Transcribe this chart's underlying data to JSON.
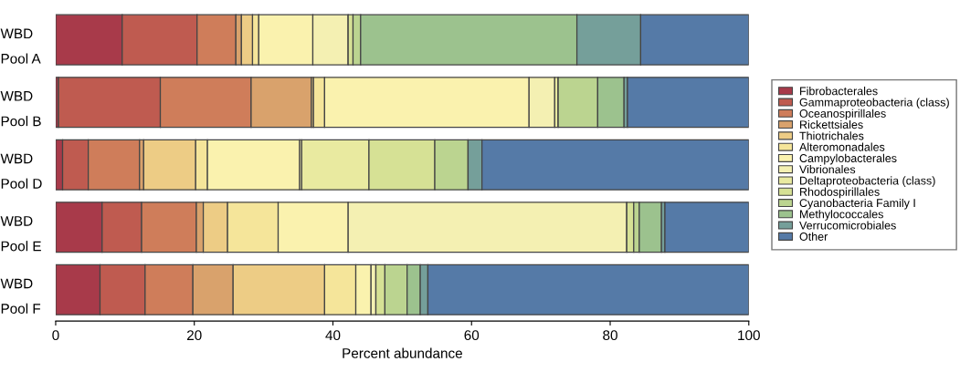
{
  "chart_data": {
    "type": "bar",
    "orientation": "horizontal",
    "stacked": true,
    "xlabel": "Percent abundance",
    "categories": [
      "WBD\nPool A",
      "WBD\nPool B",
      "WBD\nPool D",
      "WBD\nPool E",
      "WBD\nPool F"
    ],
    "xlim": [
      0,
      100
    ],
    "xticks": [
      0,
      20,
      40,
      60,
      80,
      100
    ],
    "grid": false,
    "legend": "right",
    "series": [
      {
        "name": "Fibrobacterales",
        "color": "#a83a4a",
        "values": [
          9.6,
          0.4,
          1.0,
          6.7,
          6.4
        ]
      },
      {
        "name": "Gammaproteobacteria (class)",
        "color": "#bf5b50",
        "values": [
          10.8,
          14.7,
          3.7,
          5.7,
          6.5
        ]
      },
      {
        "name": "Oceanospirillales",
        "color": "#cf7d5a",
        "values": [
          5.6,
          13.1,
          7.4,
          7.9,
          6.9
        ]
      },
      {
        "name": "Rickettsiales",
        "color": "#d9a26c",
        "values": [
          0.8,
          8.7,
          0.6,
          1.0,
          5.8
        ]
      },
      {
        "name": "Thiotrichales",
        "color": "#edcc85",
        "values": [
          1.6,
          0.3,
          7.5,
          3.5,
          13.2
        ]
      },
      {
        "name": "Alteromonadales",
        "color": "#f5e59a",
        "values": [
          0.9,
          1.6,
          1.7,
          7.3,
          4.5
        ]
      },
      {
        "name": "Campylobacterales",
        "color": "#faf2ae",
        "values": [
          7.8,
          29.5,
          13.3,
          10.1,
          2.2
        ]
      },
      {
        "name": "Vibrionales",
        "color": "#f4f0b2",
        "values": [
          5.1,
          3.7,
          0.3,
          40.2,
          0.7
        ]
      },
      {
        "name": "Deltaproteobacteria (class)",
        "color": "#e9eaa0",
        "values": [
          0,
          0.5,
          9.7,
          0,
          0
        ]
      },
      {
        "name": "Rhodospirillales",
        "color": "#d6e195",
        "values": [
          0.7,
          0,
          9.5,
          1.0,
          1.3
        ]
      },
      {
        "name": "Cyanobacteria Family I",
        "color": "#bbd490",
        "values": [
          1.1,
          5.7,
          4.8,
          0.8,
          3.2
        ]
      },
      {
        "name": "Methylococcales",
        "color": "#9cc28e",
        "values": [
          31.2,
          3.8,
          0,
          3.2,
          1.9
        ]
      },
      {
        "name": "Verrucomicrobiales",
        "color": "#759f9a",
        "values": [
          9.2,
          0.5,
          2.0,
          0.5,
          1.1
        ]
      },
      {
        "name": "Other",
        "color": "#557aa7",
        "values": [
          15.6,
          17.5,
          38.5,
          12.1,
          46.3
        ]
      }
    ]
  }
}
